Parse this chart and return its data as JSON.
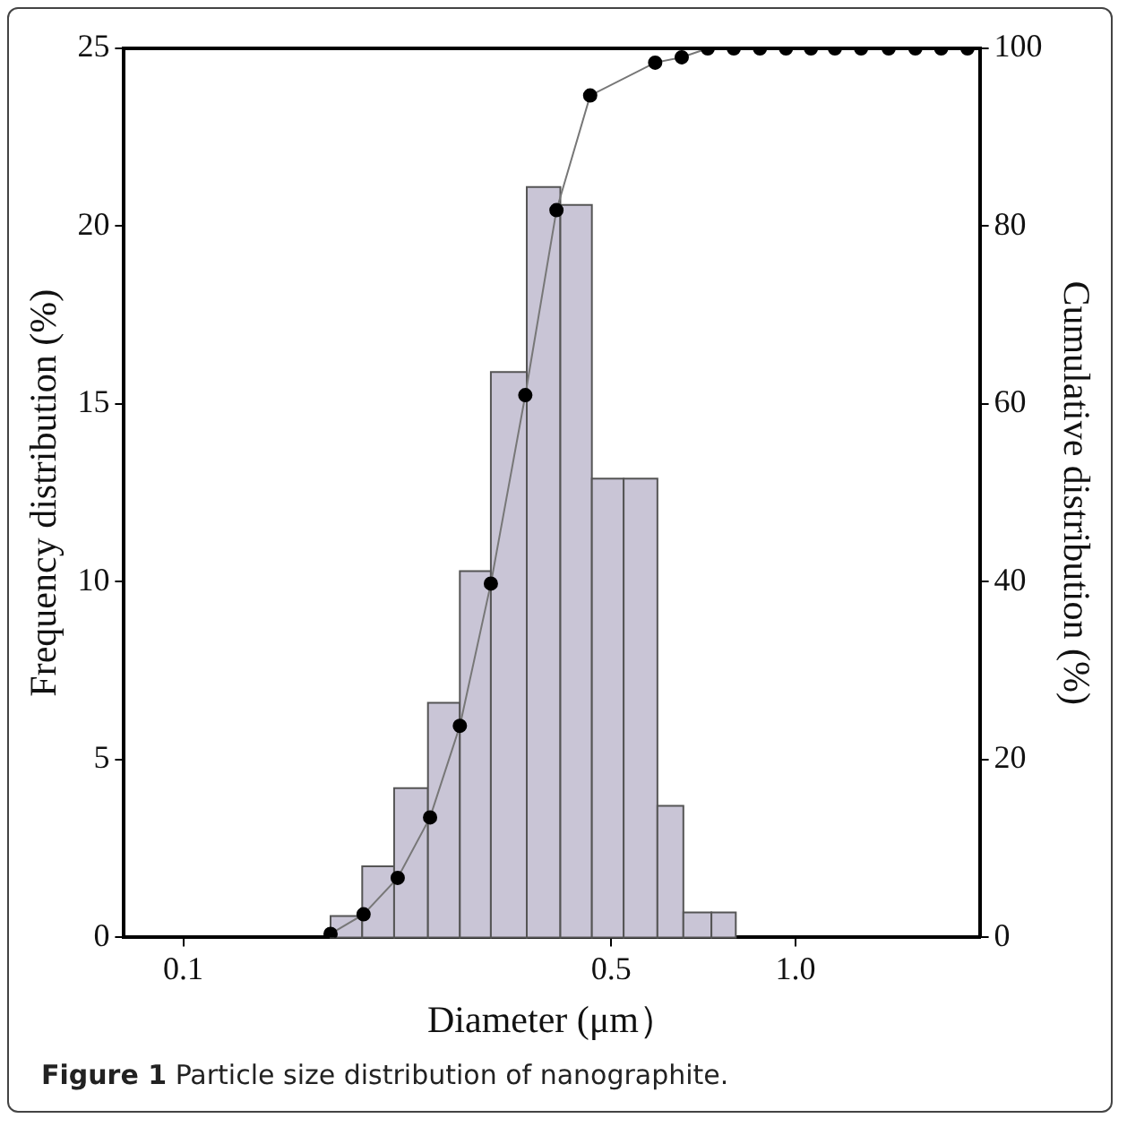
{
  "chart_data": {
    "type": "histogram",
    "xlabel": "Diameter (μm）",
    "ylabel": "Frequency distribution (%)",
    "y2label": "Cumulative distribution (%)",
    "annotations": [
      "Figure 1 Particle size distribution of nanographite."
    ],
    "series": [
      {
        "type": "histogram",
        "color": "#c9c5d6",
        "bins": [
          0.174,
          0.196,
          0.221,
          0.251,
          0.283,
          0.318,
          0.364,
          0.413,
          0.465,
          0.524,
          0.595,
          0.656,
          0.729,
          0.799
        ],
        "values": [
          0.6,
          2.0,
          4.2,
          6.6,
          10.3,
          15.9,
          21.1,
          20.6,
          12.9,
          12.9,
          3.7,
          0.7,
          0.7
        ]
      },
      {
        "type": "line",
        "axis": "y2",
        "color": "#000000",
        "x": [
          0.174,
          0.197,
          0.224,
          0.253,
          0.283,
          0.318,
          0.362,
          0.407,
          0.462,
          0.59,
          0.652,
          0.719,
          0.793,
          0.875,
          0.965,
          1.06,
          1.16,
          1.28,
          1.42,
          1.57,
          1.73,
          1.91
        ],
        "values": [
          0.4,
          2.6,
          6.7,
          13.5,
          23.8,
          39.8,
          61.0,
          81.8,
          94.7,
          98.4,
          99.0,
          100,
          100,
          100,
          100,
          100,
          100,
          100,
          100,
          100,
          100,
          100
        ]
      }
    ],
    "log": "x",
    "marker": "circle",
    "line_style": "solid",
    "grid": false,
    "xlim": [
      0.08,
      2
    ],
    "xticks": [
      0.1,
      0.5,
      {
        "value": 1,
        "label": "1.0"
      }
    ],
    "ylim": [
      0,
      25
    ],
    "yticks": [
      0,
      5,
      10,
      15,
      20,
      25
    ],
    "y2lim": [
      0,
      100
    ],
    "y2ticks": [
      0,
      20,
      40,
      60,
      80,
      100
    ]
  }
}
